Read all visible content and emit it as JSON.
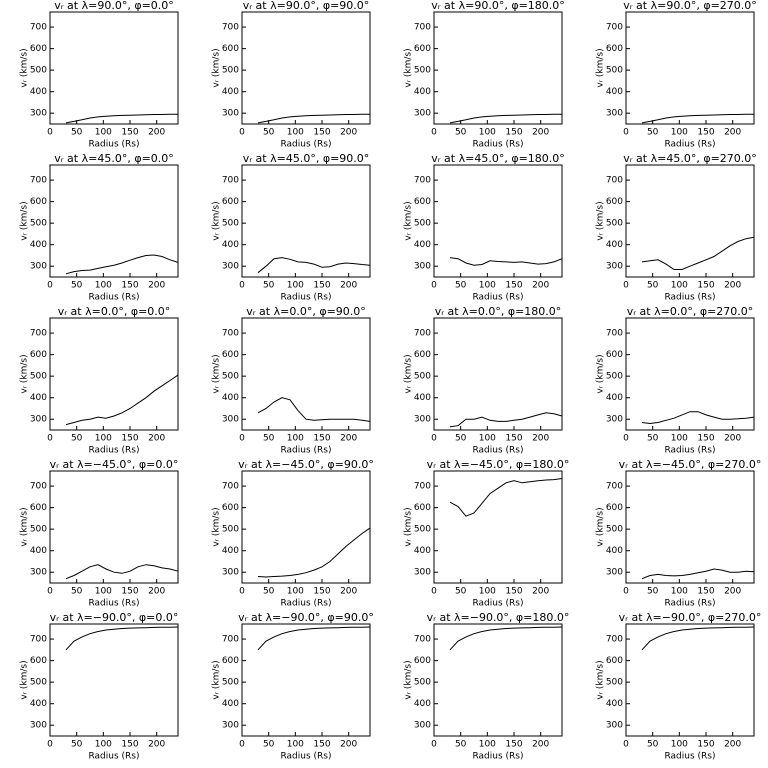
{
  "chart_data": [
    {
      "type": "line",
      "title": "vᵣ at λ=90.0°, φ=0.0°",
      "xlabel": "Radius (Rs)",
      "ylabel": "vᵣ (km/s)",
      "color": "#000000",
      "xlim": [
        0,
        240
      ],
      "ylim": [
        250,
        770
      ],
      "xticks": [
        0,
        50,
        100,
        150,
        200
      ],
      "yticks": [
        300,
        400,
        500,
        600,
        700
      ],
      "x": [
        30,
        45,
        60,
        75,
        90,
        105,
        120,
        135,
        150,
        165,
        180,
        195,
        210,
        225,
        240
      ],
      "values": [
        255,
        262,
        270,
        278,
        283,
        286,
        288,
        290,
        291,
        292,
        293,
        294,
        294,
        295,
        295
      ]
    },
    {
      "type": "line",
      "title": "vᵣ at λ=90.0°, φ=90.0°",
      "xlabel": "Radius (Rs)",
      "ylabel": "vᵣ (km/s)",
      "color": "#000000",
      "xlim": [
        0,
        240
      ],
      "ylim": [
        250,
        770
      ],
      "xticks": [
        0,
        50,
        100,
        150,
        200
      ],
      "yticks": [
        300,
        400,
        500,
        600,
        700
      ],
      "x": [
        30,
        45,
        60,
        75,
        90,
        105,
        120,
        135,
        150,
        165,
        180,
        195,
        210,
        225,
        240
      ],
      "values": [
        255,
        262,
        270,
        278,
        283,
        286,
        288,
        290,
        291,
        292,
        293,
        294,
        294,
        295,
        295
      ]
    },
    {
      "type": "line",
      "title": "vᵣ at λ=90.0°, φ=180.0°",
      "xlabel": "Radius (Rs)",
      "ylabel": "vᵣ (km/s)",
      "color": "#000000",
      "xlim": [
        0,
        240
      ],
      "ylim": [
        250,
        770
      ],
      "xticks": [
        0,
        50,
        100,
        150,
        200
      ],
      "yticks": [
        300,
        400,
        500,
        600,
        700
      ],
      "x": [
        30,
        45,
        60,
        75,
        90,
        105,
        120,
        135,
        150,
        165,
        180,
        195,
        210,
        225,
        240
      ],
      "values": [
        255,
        262,
        270,
        278,
        283,
        286,
        288,
        290,
        291,
        292,
        293,
        294,
        294,
        295,
        295
      ]
    },
    {
      "type": "line",
      "title": "vᵣ at λ=90.0°, φ=270.0°",
      "xlabel": "Radius (Rs)",
      "ylabel": "vᵣ (km/s)",
      "color": "#000000",
      "xlim": [
        0,
        240
      ],
      "ylim": [
        250,
        770
      ],
      "xticks": [
        0,
        50,
        100,
        150,
        200
      ],
      "yticks": [
        300,
        400,
        500,
        600,
        700
      ],
      "x": [
        30,
        45,
        60,
        75,
        90,
        105,
        120,
        135,
        150,
        165,
        180,
        195,
        210,
        225,
        240
      ],
      "values": [
        255,
        262,
        270,
        278,
        283,
        286,
        288,
        290,
        291,
        292,
        293,
        294,
        294,
        295,
        295
      ]
    },
    {
      "type": "line",
      "title": "vᵣ at λ=45.0°, φ=0.0°",
      "xlabel": "Radius (Rs)",
      "ylabel": "vᵣ (km/s)",
      "color": "#000000",
      "xlim": [
        0,
        240
      ],
      "ylim": [
        250,
        770
      ],
      "xticks": [
        0,
        50,
        100,
        150,
        200
      ],
      "yticks": [
        300,
        400,
        500,
        600,
        700
      ],
      "x": [
        30,
        45,
        60,
        75,
        90,
        105,
        120,
        135,
        150,
        165,
        180,
        195,
        210,
        225,
        240
      ],
      "values": [
        265,
        275,
        280,
        282,
        290,
        298,
        305,
        315,
        328,
        340,
        350,
        352,
        345,
        330,
        318
      ]
    },
    {
      "type": "line",
      "title": "vᵣ at λ=45.0°, φ=90.0°",
      "xlabel": "Radius (Rs)",
      "ylabel": "vᵣ (km/s)",
      "color": "#000000",
      "xlim": [
        0,
        240
      ],
      "ylim": [
        250,
        770
      ],
      "xticks": [
        0,
        50,
        100,
        150,
        200
      ],
      "yticks": [
        300,
        400,
        500,
        600,
        700
      ],
      "x": [
        30,
        45,
        60,
        75,
        90,
        105,
        120,
        135,
        150,
        165,
        180,
        195,
        210,
        225,
        240
      ],
      "values": [
        270,
        300,
        335,
        340,
        332,
        320,
        318,
        310,
        295,
        298,
        310,
        315,
        312,
        308,
        305
      ]
    },
    {
      "type": "line",
      "title": "vᵣ at λ=45.0°, φ=180.0°",
      "xlabel": "Radius (Rs)",
      "ylabel": "vᵣ (km/s)",
      "color": "#000000",
      "xlim": [
        0,
        240
      ],
      "ylim": [
        250,
        770
      ],
      "xticks": [
        0,
        50,
        100,
        150,
        200
      ],
      "yticks": [
        300,
        400,
        500,
        600,
        700
      ],
      "x": [
        30,
        45,
        60,
        75,
        90,
        105,
        120,
        135,
        150,
        165,
        180,
        195,
        210,
        225,
        240
      ],
      "values": [
        340,
        335,
        315,
        305,
        308,
        325,
        322,
        320,
        318,
        320,
        315,
        310,
        312,
        320,
        335
      ]
    },
    {
      "type": "line",
      "title": "vᵣ at λ=45.0°, φ=270.0°",
      "xlabel": "Radius (Rs)",
      "ylabel": "vᵣ (km/s)",
      "color": "#000000",
      "xlim": [
        0,
        240
      ],
      "ylim": [
        250,
        770
      ],
      "xticks": [
        0,
        50,
        100,
        150,
        200
      ],
      "yticks": [
        300,
        400,
        500,
        600,
        700
      ],
      "x": [
        30,
        45,
        60,
        75,
        90,
        105,
        120,
        135,
        150,
        165,
        180,
        195,
        210,
        225,
        240
      ],
      "values": [
        320,
        325,
        330,
        310,
        285,
        285,
        300,
        315,
        330,
        345,
        370,
        395,
        415,
        428,
        435
      ]
    },
    {
      "type": "line",
      "title": "vᵣ at λ=0.0°, φ=0.0°",
      "xlabel": "Radius (Rs)",
      "ylabel": "vᵣ (km/s)",
      "color": "#000000",
      "xlim": [
        0,
        240
      ],
      "ylim": [
        250,
        770
      ],
      "xticks": [
        0,
        50,
        100,
        150,
        200
      ],
      "yticks": [
        300,
        400,
        500,
        600,
        700
      ],
      "x": [
        30,
        45,
        60,
        75,
        90,
        105,
        120,
        135,
        150,
        165,
        180,
        195,
        210,
        225,
        240
      ],
      "values": [
        275,
        285,
        295,
        300,
        310,
        305,
        315,
        330,
        350,
        375,
        400,
        430,
        455,
        480,
        505
      ]
    },
    {
      "type": "line",
      "title": "vᵣ at λ=0.0°, φ=90.0°",
      "xlabel": "Radius (Rs)",
      "ylabel": "vᵣ (km/s)",
      "color": "#000000",
      "xlim": [
        0,
        240
      ],
      "ylim": [
        250,
        770
      ],
      "xticks": [
        0,
        50,
        100,
        150,
        200
      ],
      "yticks": [
        300,
        400,
        500,
        600,
        700
      ],
      "x": [
        30,
        45,
        60,
        75,
        90,
        105,
        120,
        135,
        150,
        165,
        180,
        195,
        210,
        225,
        240
      ],
      "values": [
        330,
        350,
        380,
        400,
        390,
        340,
        300,
        295,
        298,
        300,
        300,
        300,
        300,
        295,
        290
      ]
    },
    {
      "type": "line",
      "title": "vᵣ at λ=0.0°, φ=180.0°",
      "xlabel": "Radius (Rs)",
      "ylabel": "vᵣ (km/s)",
      "color": "#000000",
      "xlim": [
        0,
        240
      ],
      "ylim": [
        250,
        770
      ],
      "xticks": [
        0,
        50,
        100,
        150,
        200
      ],
      "yticks": [
        300,
        400,
        500,
        600,
        700
      ],
      "x": [
        30,
        45,
        60,
        75,
        90,
        105,
        120,
        135,
        150,
        165,
        180,
        195,
        210,
        225,
        240
      ],
      "values": [
        265,
        270,
        300,
        300,
        310,
        295,
        290,
        290,
        295,
        300,
        310,
        320,
        330,
        325,
        315
      ]
    },
    {
      "type": "line",
      "title": "vᵣ at λ=0.0°, φ=270.0°",
      "xlabel": "Radius (Rs)",
      "ylabel": "vᵣ (km/s)",
      "color": "#000000",
      "xlim": [
        0,
        240
      ],
      "ylim": [
        250,
        770
      ],
      "xticks": [
        0,
        50,
        100,
        150,
        200
      ],
      "yticks": [
        300,
        400,
        500,
        600,
        700
      ],
      "x": [
        30,
        45,
        60,
        75,
        90,
        105,
        120,
        135,
        150,
        165,
        180,
        195,
        210,
        225,
        240
      ],
      "values": [
        285,
        280,
        285,
        295,
        305,
        320,
        335,
        335,
        320,
        310,
        300,
        300,
        302,
        305,
        310
      ]
    },
    {
      "type": "line",
      "title": "vᵣ at λ=−45.0°, φ=0.0°",
      "xlabel": "Radius (Rs)",
      "ylabel": "vᵣ (km/s)",
      "color": "#000000",
      "xlim": [
        0,
        240
      ],
      "ylim": [
        250,
        770
      ],
      "xticks": [
        0,
        50,
        100,
        150,
        200
      ],
      "yticks": [
        300,
        400,
        500,
        600,
        700
      ],
      "x": [
        30,
        45,
        60,
        75,
        90,
        105,
        120,
        135,
        150,
        165,
        180,
        195,
        210,
        225,
        240
      ],
      "values": [
        270,
        285,
        305,
        325,
        335,
        315,
        300,
        295,
        305,
        325,
        335,
        330,
        320,
        315,
        305
      ]
    },
    {
      "type": "line",
      "title": "vᵣ at λ=−45.0°, φ=90.0°",
      "xlabel": "Radius (Rs)",
      "ylabel": "vᵣ (km/s)",
      "color": "#000000",
      "xlim": [
        0,
        240
      ],
      "ylim": [
        250,
        770
      ],
      "xticks": [
        0,
        50,
        100,
        150,
        200
      ],
      "yticks": [
        300,
        400,
        500,
        600,
        700
      ],
      "x": [
        30,
        45,
        60,
        75,
        90,
        105,
        120,
        135,
        150,
        165,
        180,
        195,
        210,
        225,
        240
      ],
      "values": [
        280,
        278,
        280,
        282,
        285,
        290,
        298,
        310,
        325,
        350,
        385,
        420,
        450,
        480,
        505
      ]
    },
    {
      "type": "line",
      "title": "vᵣ at λ=−45.0°, φ=180.0°",
      "xlabel": "Radius (Rs)",
      "ylabel": "vᵣ (km/s)",
      "color": "#000000",
      "xlim": [
        0,
        240
      ],
      "ylim": [
        250,
        770
      ],
      "xticks": [
        0,
        50,
        100,
        150,
        200
      ],
      "yticks": [
        300,
        400,
        500,
        600,
        700
      ],
      "x": [
        30,
        45,
        60,
        75,
        90,
        105,
        120,
        135,
        150,
        165,
        180,
        195,
        210,
        225,
        240
      ],
      "values": [
        625,
        605,
        560,
        575,
        620,
        665,
        690,
        715,
        725,
        715,
        720,
        725,
        728,
        730,
        735
      ]
    },
    {
      "type": "line",
      "title": "vᵣ at λ=−45.0°, φ=270.0°",
      "xlabel": "Radius (Rs)",
      "ylabel": "vᵣ (km/s)",
      "color": "#000000",
      "xlim": [
        0,
        240
      ],
      "ylim": [
        250,
        770
      ],
      "xticks": [
        0,
        50,
        100,
        150,
        200
      ],
      "yticks": [
        300,
        400,
        500,
        600,
        700
      ],
      "x": [
        30,
        45,
        60,
        75,
        90,
        105,
        120,
        135,
        150,
        165,
        180,
        195,
        210,
        225,
        240
      ],
      "values": [
        270,
        285,
        290,
        285,
        283,
        285,
        290,
        298,
        305,
        315,
        310,
        300,
        300,
        305,
        302
      ]
    },
    {
      "type": "line",
      "title": "vᵣ at λ=−90.0°, φ=0.0°",
      "xlabel": "Radius (Rs)",
      "ylabel": "vᵣ (km/s)",
      "color": "#000000",
      "xlim": [
        0,
        240
      ],
      "ylim": [
        250,
        770
      ],
      "xticks": [
        0,
        50,
        100,
        150,
        200
      ],
      "yticks": [
        300,
        400,
        500,
        600,
        700
      ],
      "x": [
        30,
        45,
        60,
        75,
        90,
        105,
        120,
        135,
        150,
        165,
        180,
        195,
        210,
        225,
        240
      ],
      "values": [
        650,
        690,
        710,
        725,
        735,
        742,
        746,
        749,
        751,
        752,
        753,
        754,
        755,
        755,
        756
      ]
    },
    {
      "type": "line",
      "title": "vᵣ at λ=−90.0°, φ=90.0°",
      "xlabel": "Radius (Rs)",
      "ylabel": "vᵣ (km/s)",
      "color": "#000000",
      "xlim": [
        0,
        240
      ],
      "ylim": [
        250,
        770
      ],
      "xticks": [
        0,
        50,
        100,
        150,
        200
      ],
      "yticks": [
        300,
        400,
        500,
        600,
        700
      ],
      "x": [
        30,
        45,
        60,
        75,
        90,
        105,
        120,
        135,
        150,
        165,
        180,
        195,
        210,
        225,
        240
      ],
      "values": [
        650,
        690,
        710,
        725,
        735,
        742,
        746,
        749,
        751,
        752,
        753,
        754,
        755,
        755,
        756
      ]
    },
    {
      "type": "line",
      "title": "vᵣ at λ=−90.0°, φ=180.0°",
      "xlabel": "Radius (Rs)",
      "ylabel": "vᵣ (km/s)",
      "color": "#000000",
      "xlim": [
        0,
        240
      ],
      "ylim": [
        250,
        770
      ],
      "xticks": [
        0,
        50,
        100,
        150,
        200
      ],
      "yticks": [
        300,
        400,
        500,
        600,
        700
      ],
      "x": [
        30,
        45,
        60,
        75,
        90,
        105,
        120,
        135,
        150,
        165,
        180,
        195,
        210,
        225,
        240
      ],
      "values": [
        650,
        690,
        710,
        725,
        735,
        742,
        746,
        749,
        751,
        752,
        753,
        754,
        755,
        755,
        756
      ]
    },
    {
      "type": "line",
      "title": "vᵣ at λ=−90.0°, φ=270.0°",
      "xlabel": "Radius (Rs)",
      "ylabel": "vᵣ (km/s)",
      "color": "#000000",
      "xlim": [
        0,
        240
      ],
      "ylim": [
        250,
        770
      ],
      "xticks": [
        0,
        50,
        100,
        150,
        200
      ],
      "yticks": [
        300,
        400,
        500,
        600,
        700
      ],
      "x": [
        30,
        45,
        60,
        75,
        90,
        105,
        120,
        135,
        150,
        165,
        180,
        195,
        210,
        225,
        240
      ],
      "values": [
        650,
        690,
        710,
        725,
        735,
        742,
        746,
        749,
        751,
        752,
        753,
        754,
        755,
        755,
        756
      ]
    }
  ]
}
